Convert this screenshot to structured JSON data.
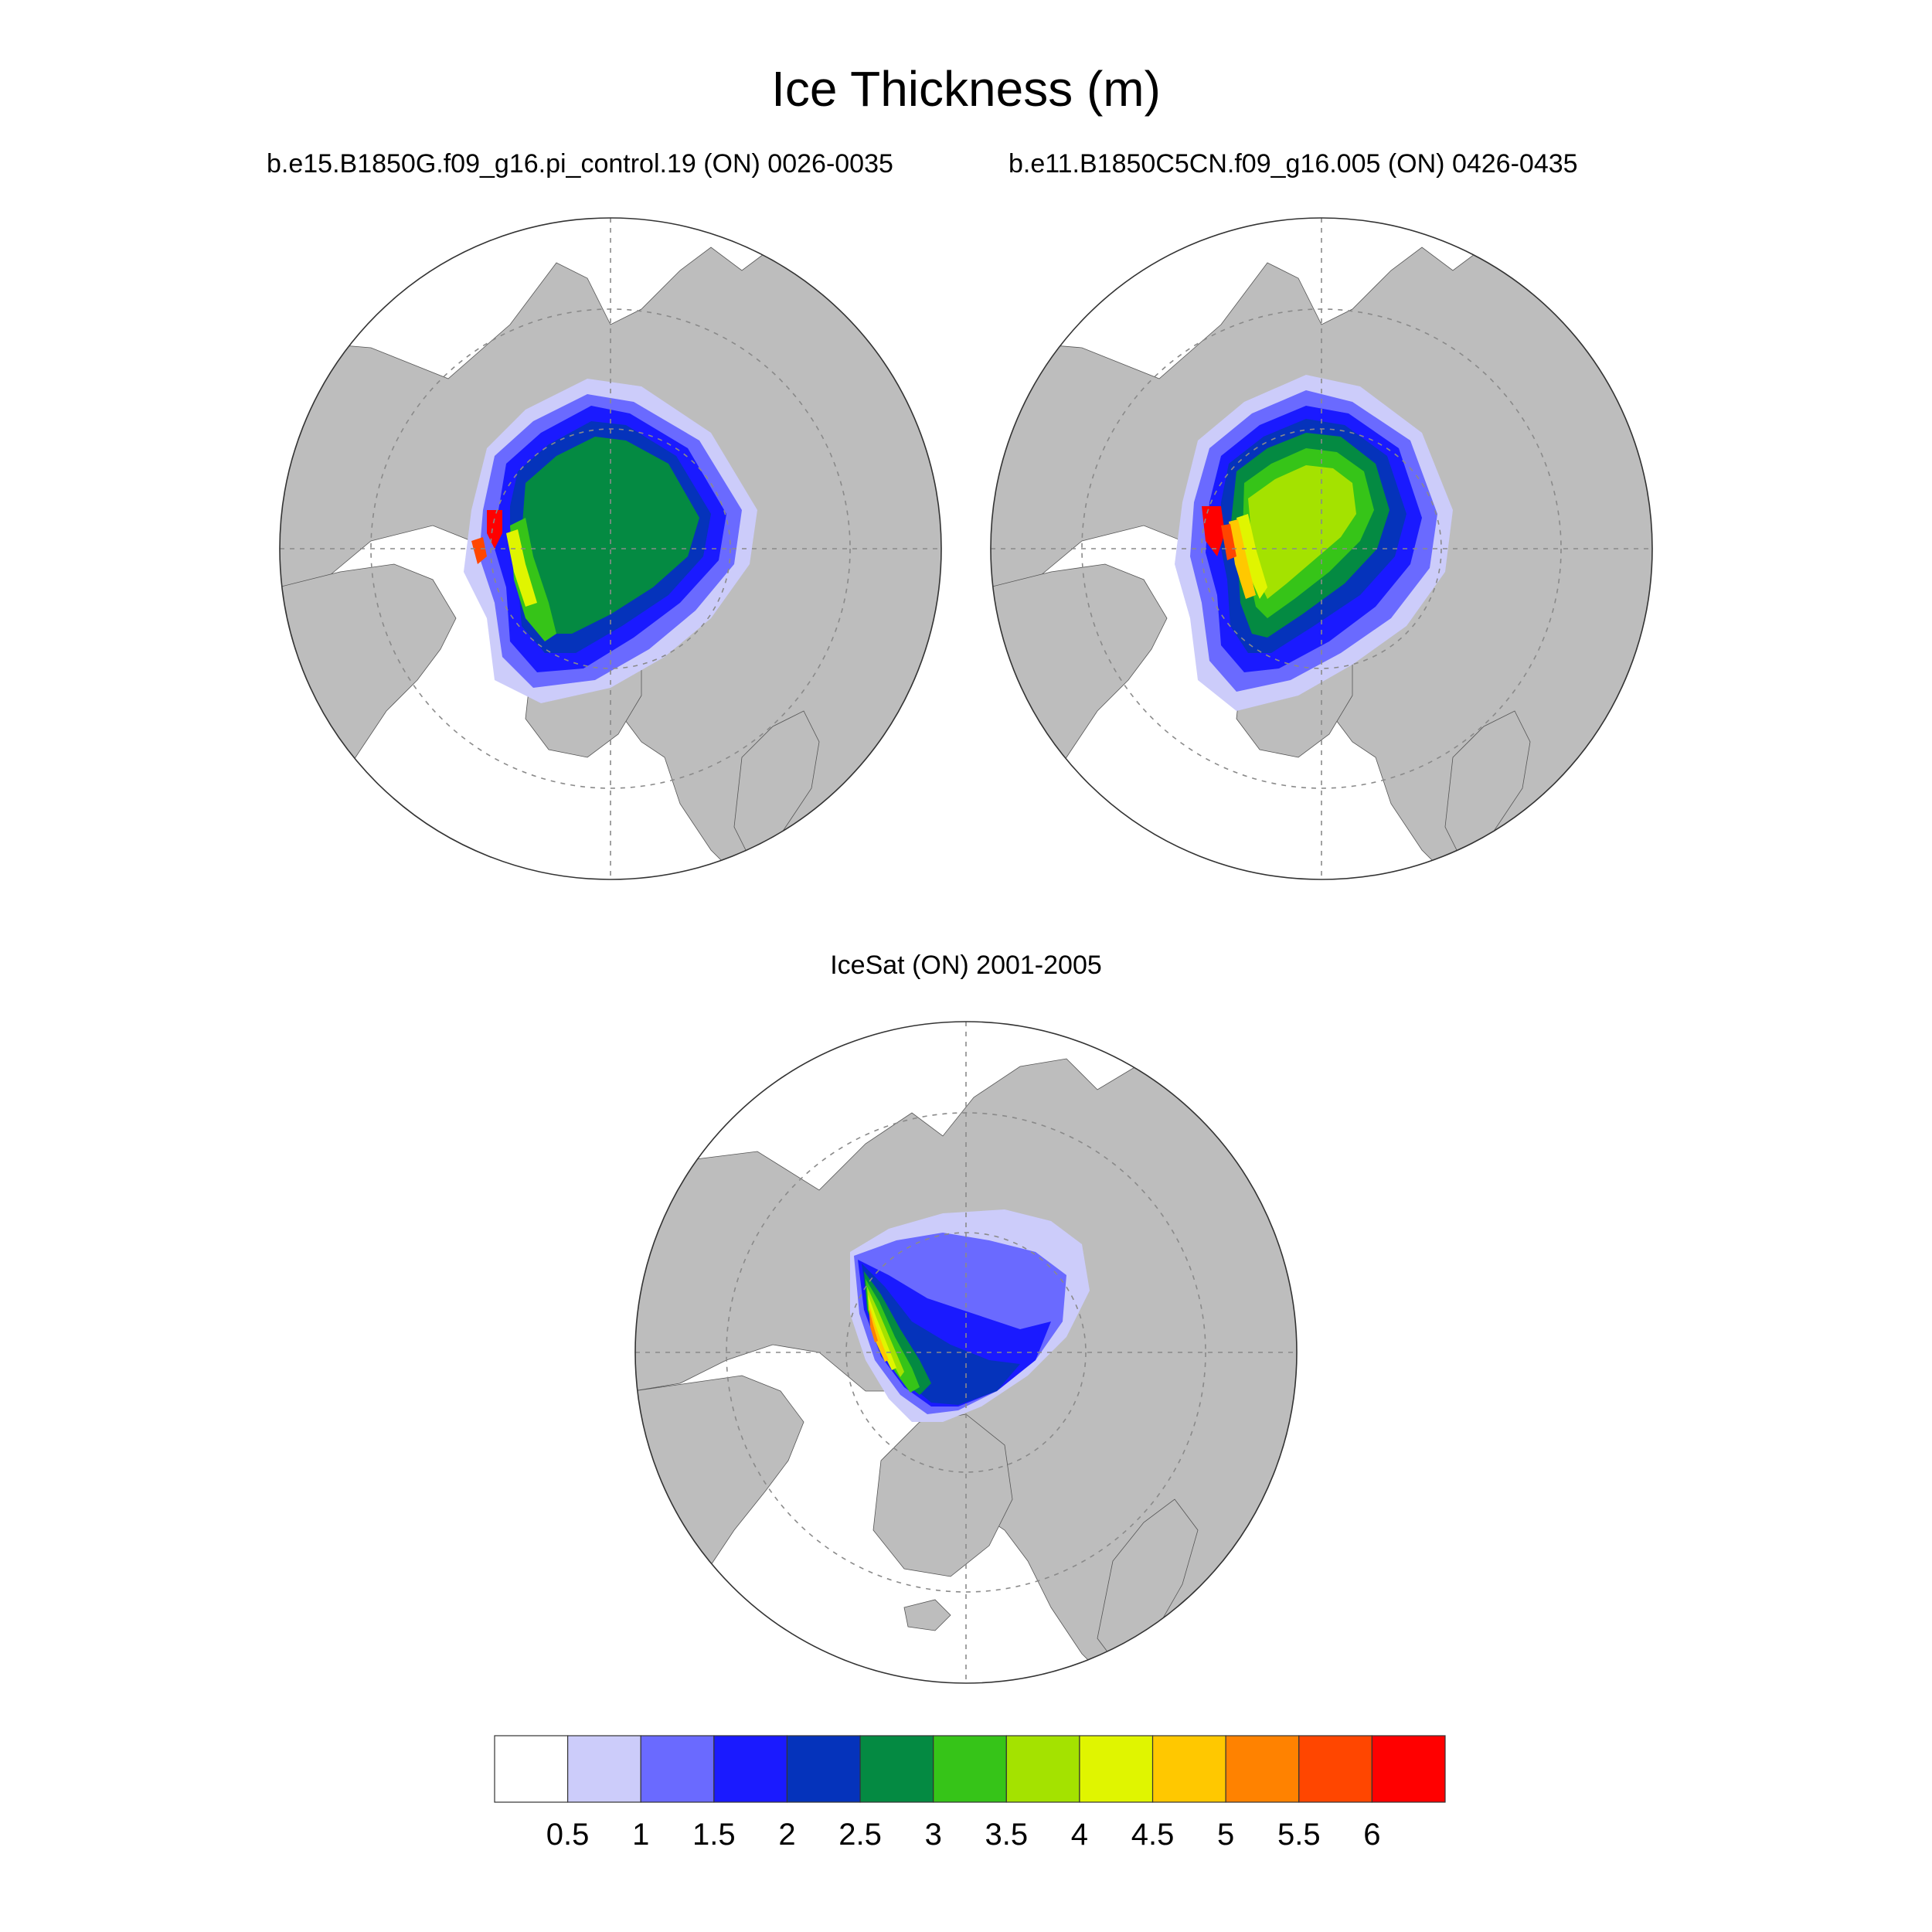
{
  "title": "Ice Thickness (m)",
  "panels": [
    {
      "subtitle": "b.e15.B1850G.f09_g16.pi_control.19 (ON) 0026-0035"
    },
    {
      "subtitle": "b.e11.B1850C5CN.f09_g16.005 (ON) 0426-0435"
    },
    {
      "subtitle": "IceSat (ON) 2001-2005"
    }
  ],
  "colorbar": {
    "colors": [
      "#ffffff",
      "#ccccfa",
      "#6a6aff",
      "#1a1aff",
      "#0533bb",
      "#048a42",
      "#36c418",
      "#a4e200",
      "#e0f500",
      "#ffc800",
      "#ff8200",
      "#ff4600",
      "#ff0000"
    ],
    "labels": [
      "0.5",
      "1",
      "1.5",
      "2",
      "2.5",
      "3",
      "3.5",
      "4",
      "4.5",
      "5",
      "5.5",
      "6"
    ]
  },
  "colors": {
    "land": "#bdbdbd",
    "ocean": "#ffffff",
    "graticule": "#8a8a8a"
  }
}
